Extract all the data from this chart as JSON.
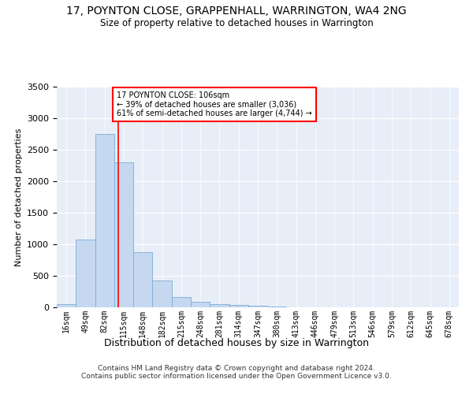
{
  "title": "17, POYNTON CLOSE, GRAPPENHALL, WARRINGTON, WA4 2NG",
  "subtitle": "Size of property relative to detached houses in Warrington",
  "xlabel": "Distribution of detached houses by size in Warrington",
  "ylabel": "Number of detached properties",
  "bin_labels": [
    "16sqm",
    "49sqm",
    "82sqm",
    "115sqm",
    "148sqm",
    "182sqm",
    "215sqm",
    "248sqm",
    "281sqm",
    "314sqm",
    "347sqm",
    "380sqm",
    "413sqm",
    "446sqm",
    "479sqm",
    "513sqm",
    "546sqm",
    "579sqm",
    "612sqm",
    "645sqm",
    "678sqm"
  ],
  "bar_values": [
    50,
    1080,
    2750,
    2300,
    880,
    420,
    160,
    90,
    50,
    35,
    25,
    10,
    5,
    0,
    0,
    0,
    0,
    0,
    0,
    0,
    0
  ],
  "bar_color": "#c5d8f0",
  "bar_edgecolor": "#7aadd4",
  "property_line_x": 2.73,
  "property_sqm": 106,
  "property_pct_smaller": 39,
  "property_count_smaller": 3036,
  "property_pct_larger_semi": 61,
  "property_count_larger_semi": 4744,
  "vline_color": "red",
  "ylim": [
    0,
    3500
  ],
  "yticks": [
    0,
    500,
    1000,
    1500,
    2000,
    2500,
    3000,
    3500
  ],
  "background_color": "#e8eef8",
  "footer_line1": "Contains HM Land Registry data © Crown copyright and database right 2024.",
  "footer_line2": "Contains public sector information licensed under the Open Government Licence v3.0."
}
